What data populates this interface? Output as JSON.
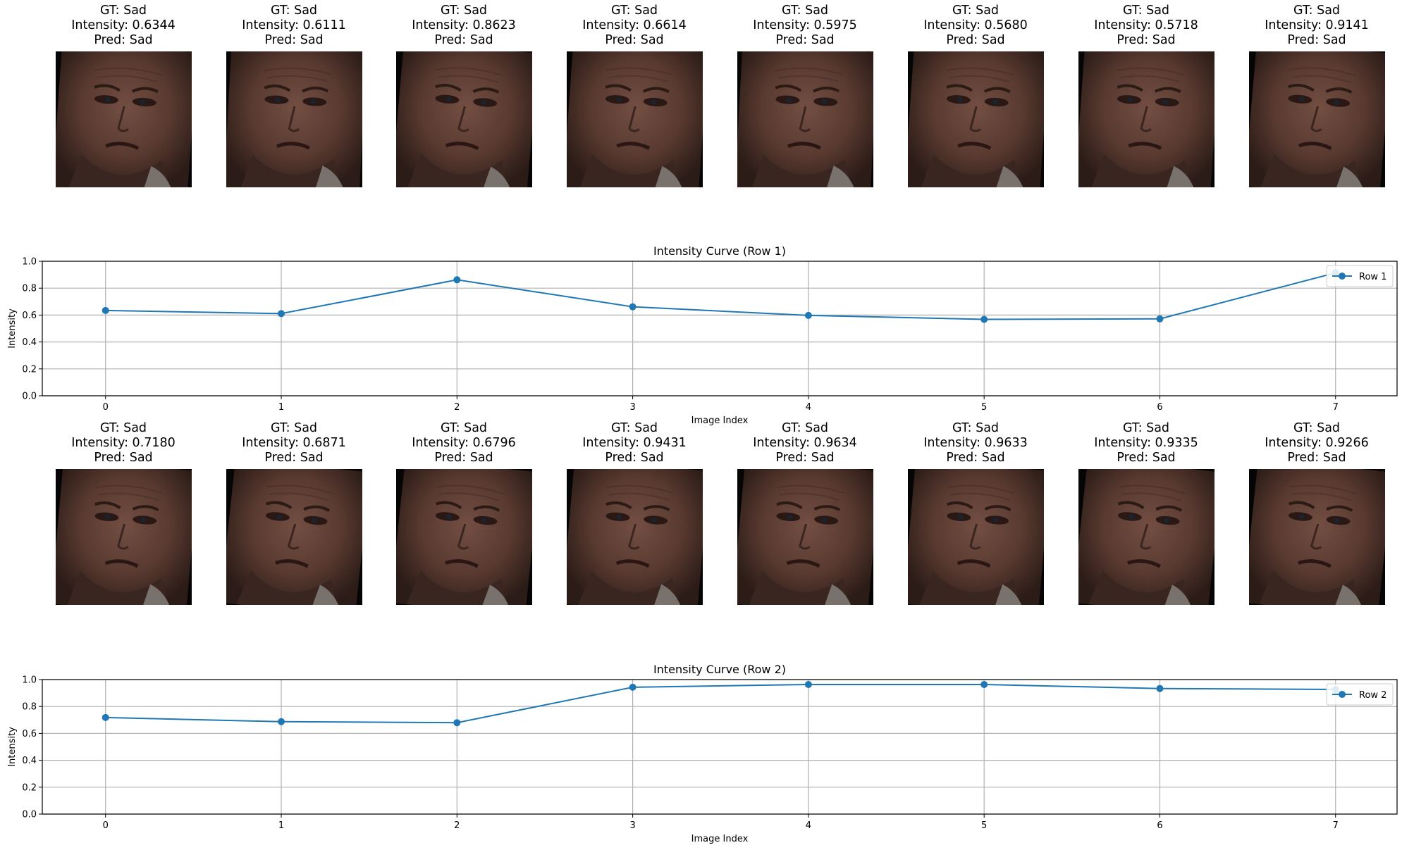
{
  "image_rows": [
    {
      "panels": [
        {
          "gt": "GT: Sad",
          "intensity": "Intensity: 0.6344",
          "pred": "Pred: Sad"
        },
        {
          "gt": "GT: Sad",
          "intensity": "Intensity: 0.6111",
          "pred": "Pred: Sad"
        },
        {
          "gt": "GT: Sad",
          "intensity": "Intensity: 0.8623",
          "pred": "Pred: Sad"
        },
        {
          "gt": "GT: Sad",
          "intensity": "Intensity: 0.6614",
          "pred": "Pred: Sad"
        },
        {
          "gt": "GT: Sad",
          "intensity": "Intensity: 0.5975",
          "pred": "Pred: Sad"
        },
        {
          "gt": "GT: Sad",
          "intensity": "Intensity: 0.5680",
          "pred": "Pred: Sad"
        },
        {
          "gt": "GT: Sad",
          "intensity": "Intensity: 0.5718",
          "pred": "Pred: Sad"
        },
        {
          "gt": "GT: Sad",
          "intensity": "Intensity: 0.9141",
          "pred": "Pred: Sad"
        }
      ]
    },
    {
      "panels": [
        {
          "gt": "GT: Sad",
          "intensity": "Intensity: 0.7180",
          "pred": "Pred: Sad"
        },
        {
          "gt": "GT: Sad",
          "intensity": "Intensity: 0.6871",
          "pred": "Pred: Sad"
        },
        {
          "gt": "GT: Sad",
          "intensity": "Intensity: 0.6796",
          "pred": "Pred: Sad"
        },
        {
          "gt": "GT: Sad",
          "intensity": "Intensity: 0.9431",
          "pred": "Pred: Sad"
        },
        {
          "gt": "GT: Sad",
          "intensity": "Intensity: 0.9634",
          "pred": "Pred: Sad"
        },
        {
          "gt": "GT: Sad",
          "intensity": "Intensity: 0.9633",
          "pred": "Pred: Sad"
        },
        {
          "gt": "GT: Sad",
          "intensity": "Intensity: 0.9335",
          "pred": "Pred: Sad"
        },
        {
          "gt": "GT: Sad",
          "intensity": "Intensity: 0.9266",
          "pred": "Pred: Sad"
        }
      ]
    }
  ],
  "colors": {
    "line": "#1f77b4",
    "grid": "#b0b0b0",
    "skin": "#5e3d33",
    "background": "#050505"
  },
  "chart_data": [
    {
      "type": "line",
      "title": "Intensity Curve (Row 1)",
      "xlabel": "Image Index",
      "ylabel": "Intensity",
      "x": [
        0,
        1,
        2,
        3,
        4,
        5,
        6,
        7
      ],
      "series": [
        {
          "name": "Row 1",
          "values": [
            0.6344,
            0.6111,
            0.8623,
            0.6614,
            0.5975,
            0.568,
            0.5718,
            0.9141
          ]
        }
      ],
      "xticks": [
        "0",
        "1",
        "2",
        "3",
        "4",
        "5",
        "6",
        "7"
      ],
      "yticks": [
        "0.0",
        "0.2",
        "0.4",
        "0.6",
        "0.8",
        "1.0"
      ],
      "ylim": [
        0,
        1
      ],
      "xlim": [
        -0.36,
        7.35
      ],
      "grid": true,
      "legend": "upper right"
    },
    {
      "type": "line",
      "title": "Intensity Curve (Row 2)",
      "xlabel": "Image Index",
      "ylabel": "Intensity",
      "x": [
        0,
        1,
        2,
        3,
        4,
        5,
        6,
        7
      ],
      "series": [
        {
          "name": "Row 2",
          "values": [
            0.718,
            0.6871,
            0.6796,
            0.9431,
            0.9634,
            0.9633,
            0.9335,
            0.9266
          ]
        }
      ],
      "xticks": [
        "0",
        "1",
        "2",
        "3",
        "4",
        "5",
        "6",
        "7"
      ],
      "yticks": [
        "0.0",
        "0.2",
        "0.4",
        "0.6",
        "0.8",
        "1.0"
      ],
      "ylim": [
        0,
        1
      ],
      "xlim": [
        -0.36,
        7.35
      ],
      "grid": true,
      "legend": "upper right"
    }
  ]
}
